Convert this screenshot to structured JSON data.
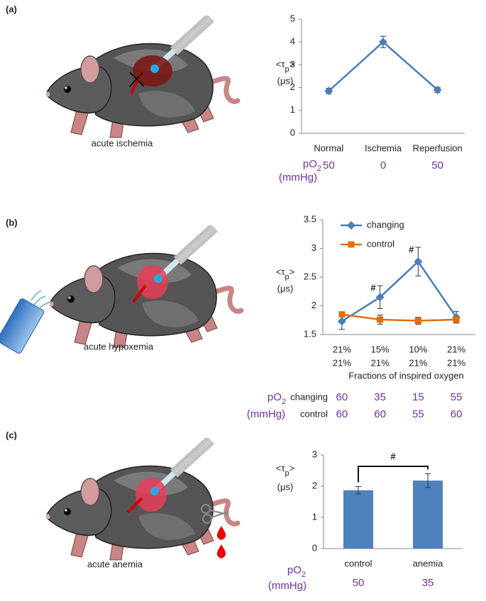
{
  "chart_data": [
    {
      "type": "line",
      "panel": "(a)",
      "caption": "acute ischemia",
      "categories": [
        "Normal",
        "Ischemia",
        "Reperfusion"
      ],
      "values": [
        1.85,
        4.0,
        1.9
      ],
      "errors": [
        0.12,
        0.25,
        0.12
      ],
      "color": "#4a7ebb",
      "marker": "diamond",
      "ylim": [
        0,
        5
      ],
      "yticks": [
        0,
        1,
        2,
        3,
        4,
        5
      ],
      "y_label": [
        "<τ",
        "p",
        ">"
      ],
      "y_unit": "(μs)",
      "po2_label": [
        "pO",
        "2"
      ],
      "po2_unit": "(mmHg)",
      "po2_values": [
        50,
        0,
        50
      ]
    },
    {
      "type": "line",
      "panel": "(b)",
      "caption": "acute hypoxemia",
      "series": [
        {
          "name": "changing",
          "color": "#4a7ebb",
          "marker": "diamond",
          "values": [
            1.73,
            2.15,
            2.77,
            1.8
          ],
          "errors": [
            0.14,
            0.2,
            0.25,
            0.1
          ],
          "fio2_labels": [
            "21%",
            "15%",
            "10%",
            "21%"
          ],
          "po2_values": [
            60,
            35,
            15,
            55
          ]
        },
        {
          "name": "control",
          "color": "#e46c0a",
          "marker": "square",
          "values": [
            1.85,
            1.76,
            1.74,
            1.76
          ],
          "errors": [
            0.03,
            0.08,
            0.06,
            0.05
          ],
          "fio2_labels": [
            "21%",
            "21%",
            "21%",
            "21%"
          ],
          "po2_values": [
            60,
            60,
            55,
            60
          ]
        }
      ],
      "x_label": "Fractions of inspired oxygen",
      "annotations": [
        "#",
        "#"
      ],
      "ylim": [
        1.5,
        3.5
      ],
      "yticks": [
        1.5,
        2,
        2.5,
        3,
        3.5
      ],
      "y_label": [
        "<τ",
        "p",
        ">"
      ],
      "y_unit": "(μs)",
      "po2_label": [
        "pO",
        "2"
      ],
      "po2_unit": "(mmHg)"
    },
    {
      "type": "bar",
      "panel": "(c)",
      "caption": "acute anemia",
      "categories": [
        "control",
        "anemia"
      ],
      "values": [
        1.87,
        2.18
      ],
      "errors": [
        0.12,
        0.22
      ],
      "color": "#4f81bd",
      "annotation": "#",
      "ylim": [
        0,
        3
      ],
      "yticks": [
        0,
        1,
        2,
        3
      ],
      "y_label": [
        "<τ",
        "p",
        ">"
      ],
      "y_unit": "(μs)",
      "po2_label": [
        "pO",
        "2"
      ],
      "po2_unit": "(mmHg)",
      "po2_values": [
        50,
        35
      ]
    }
  ]
}
